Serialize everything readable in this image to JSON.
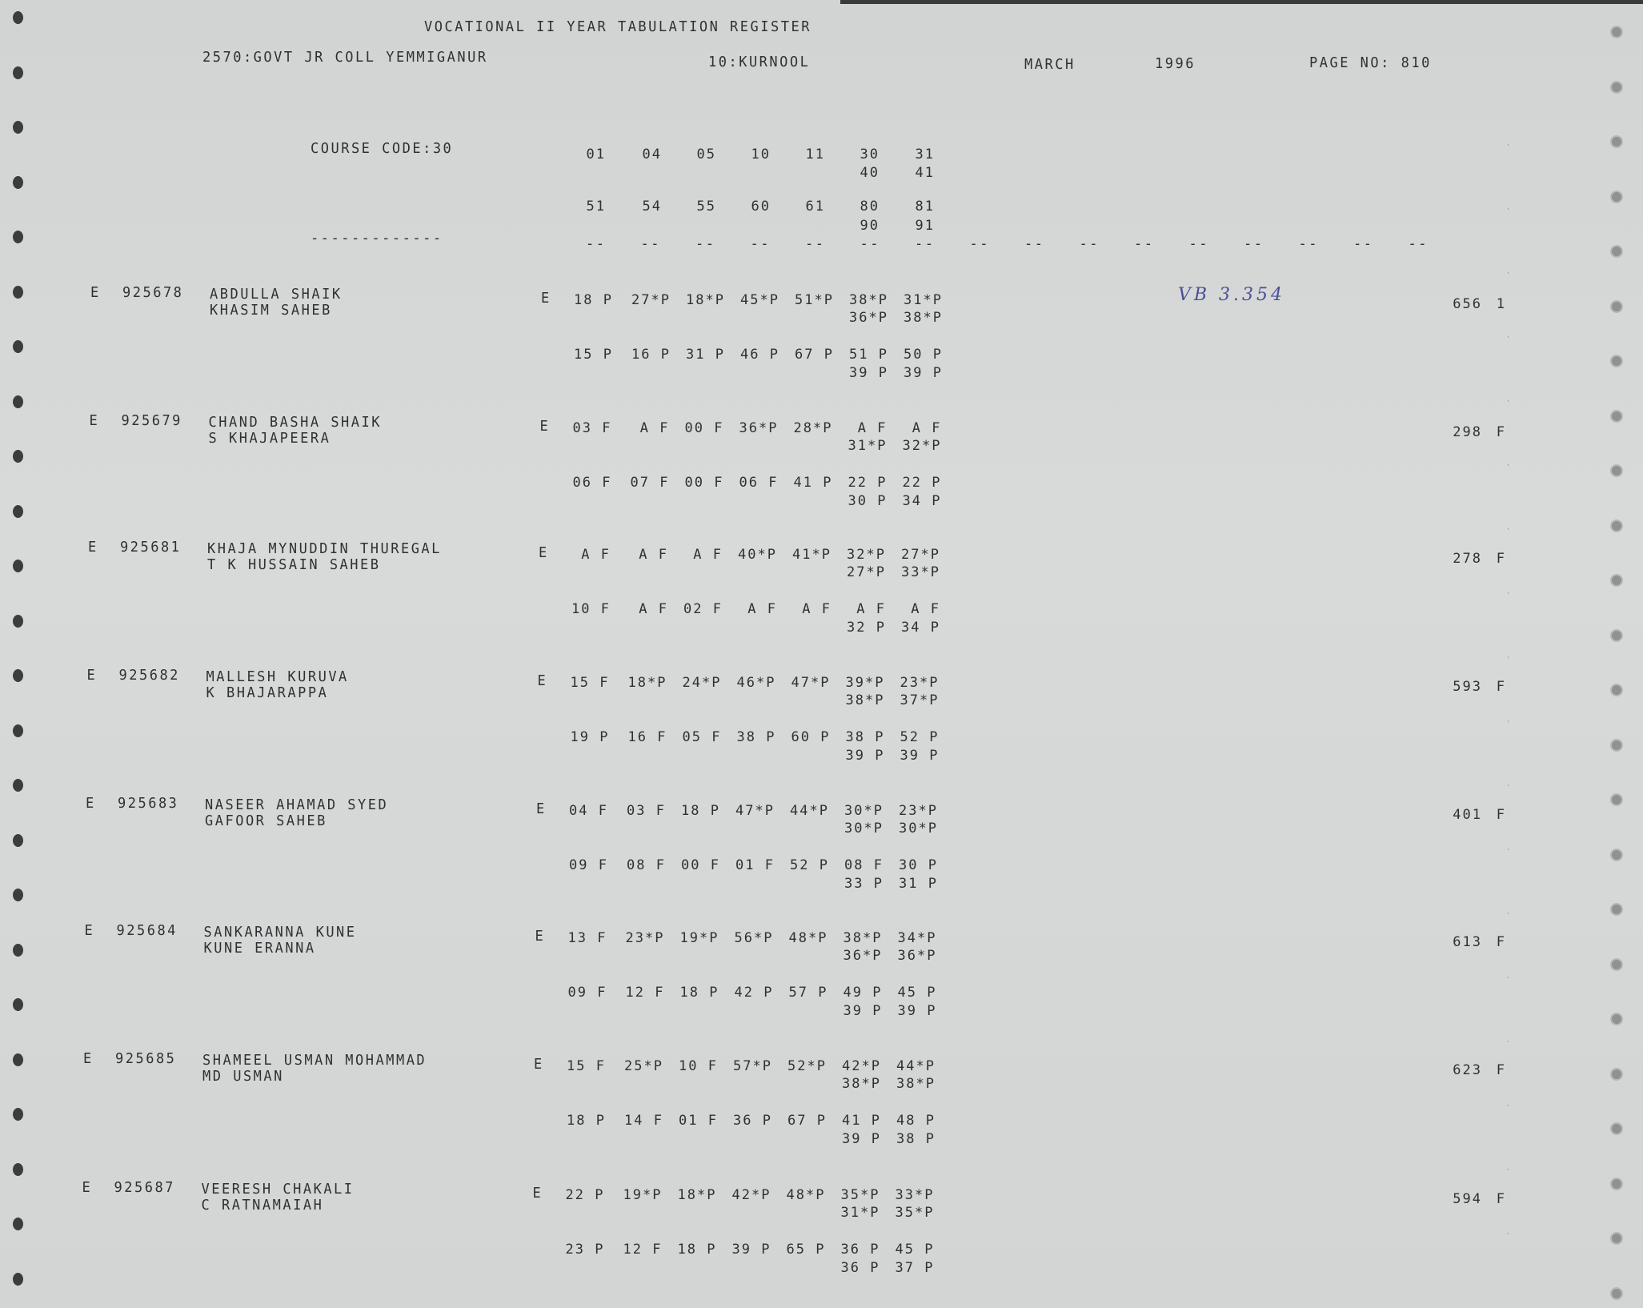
{
  "header": {
    "title": "VOCATIONAL II YEAR TABULATION REGISTER",
    "college": "2570:GOVT JR COLL YEMMIGANUR",
    "district": "10:KURNOOL",
    "month": "MARCH",
    "year": "1996",
    "page_no": "PAGE NO: 810"
  },
  "course": {
    "label": "COURSE CODE:30",
    "codes_row1": [
      "01",
      "04",
      "05",
      "10",
      "11",
      "30",
      "31"
    ],
    "codes_row1b": [
      "40",
      "41"
    ],
    "codes_row2": [
      "51",
      "54",
      "55",
      "60",
      "61",
      "80",
      "81"
    ],
    "codes_row2b": [
      "90",
      "91"
    ],
    "separator_left": "-------------",
    "separator_cols": [
      "--",
      "--",
      "--",
      "--",
      "--",
      "--",
      "--",
      "--",
      "--",
      "--",
      "--",
      "--",
      "--",
      "--",
      "--",
      "--"
    ]
  },
  "annotation": {
    "text": "VB 3.354",
    "color": "#4b4f98"
  },
  "records": [
    {
      "flag": "E",
      "roll": "925678",
      "name": "ABDULLA SHAIK",
      "father": "KHASIM SAHEB",
      "mflag": "E",
      "m1": [
        "18 P",
        "27*P",
        "18*P",
        "45*P",
        "51*P",
        "38*P",
        "31*P"
      ],
      "m1b": [
        "36*P",
        "38*P"
      ],
      "m2": [
        "15 P",
        "16 P",
        "31 P",
        "46 P",
        "67 P",
        "51 P",
        "50 P"
      ],
      "m2b": [
        "39 P",
        "39 P"
      ],
      "total": "656",
      "result": "1"
    },
    {
      "flag": "E",
      "roll": "925679",
      "name": "CHAND BASHA SHAIK",
      "father": "S KHAJAPEERA",
      "mflag": "E",
      "m1": [
        "03 F",
        "A F",
        "00 F",
        "36*P",
        "28*P",
        "A F",
        "A F"
      ],
      "m1b": [
        "31*P",
        "32*P"
      ],
      "m2": [
        "06 F",
        "07 F",
        "00 F",
        "06 F",
        "41 P",
        "22 P",
        "22 P"
      ],
      "m2b": [
        "30 P",
        "34 P"
      ],
      "total": "298",
      "result": "F"
    },
    {
      "flag": "E",
      "roll": "925681",
      "name": "KHAJA MYNUDDIN THUREGAL",
      "father": "T K HUSSAIN SAHEB",
      "mflag": "E",
      "m1": [
        "A F",
        "A F",
        "A F",
        "40*P",
        "41*P",
        "32*P",
        "27*P"
      ],
      "m1b": [
        "27*P",
        "33*P"
      ],
      "m2": [
        "10 F",
        "A F",
        "02 F",
        "A F",
        "A F",
        "A F",
        "A F"
      ],
      "m2b": [
        "32 P",
        "34 P"
      ],
      "total": "278",
      "result": "F"
    },
    {
      "flag": "E",
      "roll": "925682",
      "name": "MALLESH KURUVA",
      "father": "K BHAJARAPPA",
      "mflag": "E",
      "m1": [
        "15 F",
        "18*P",
        "24*P",
        "46*P",
        "47*P",
        "39*P",
        "23*P"
      ],
      "m1b": [
        "38*P",
        "37*P"
      ],
      "m2": [
        "19 P",
        "16 F",
        "05 F",
        "38 P",
        "60 P",
        "38 P",
        "52 P"
      ],
      "m2b": [
        "39 P",
        "39 P"
      ],
      "total": "593",
      "result": "F"
    },
    {
      "flag": "E",
      "roll": "925683",
      "name": "NASEER AHAMAD SYED",
      "father": "GAFOOR SAHEB",
      "mflag": "E",
      "m1": [
        "04 F",
        "03 F",
        "18 P",
        "47*P",
        "44*P",
        "30*P",
        "23*P"
      ],
      "m1b": [
        "30*P",
        "30*P"
      ],
      "m2": [
        "09 F",
        "08 F",
        "00 F",
        "01 F",
        "52 P",
        "08 F",
        "30 P"
      ],
      "m2b": [
        "33 P",
        "31 P"
      ],
      "total": "401",
      "result": "F"
    },
    {
      "flag": "E",
      "roll": "925684",
      "name": "SANKARANNA KUNE",
      "father": "KUNE ERANNA",
      "mflag": "E",
      "m1": [
        "13 F",
        "23*P",
        "19*P",
        "56*P",
        "48*P",
        "38*P",
        "34*P"
      ],
      "m1b": [
        "36*P",
        "36*P"
      ],
      "m2": [
        "09 F",
        "12 F",
        "18 P",
        "42 P",
        "57 P",
        "49 P",
        "45 P"
      ],
      "m2b": [
        "39 P",
        "39 P"
      ],
      "total": "613",
      "result": "F"
    },
    {
      "flag": "E",
      "roll": "925685",
      "name": "SHAMEEL USMAN MOHAMMAD",
      "father": "MD USMAN",
      "mflag": "E",
      "m1": [
        "15 F",
        "25*P",
        "10 F",
        "57*P",
        "52*P",
        "42*P",
        "44*P"
      ],
      "m1b": [
        "38*P",
        "38*P"
      ],
      "m2": [
        "18 P",
        "14 F",
        "01 F",
        "36 P",
        "67 P",
        "41 P",
        "48 P"
      ],
      "m2b": [
        "39 P",
        "38 P"
      ],
      "total": "623",
      "result": "F"
    },
    {
      "flag": "E",
      "roll": "925687",
      "name": "VEERESH CHAKALI",
      "father": "C RATNAMAIAH",
      "mflag": "E",
      "m1": [
        "22 P",
        "19*P",
        "18*P",
        "42*P",
        "48*P",
        "35*P",
        "33*P"
      ],
      "m1b": [
        "31*P",
        "35*P"
      ],
      "m2": [
        "23 P",
        "12 F",
        "18 P",
        "39 P",
        "65 P",
        "36 P",
        "45 P"
      ],
      "m2b": [
        "36 P",
        "37 P"
      ],
      "total": "594",
      "result": "F"
    }
  ]
}
